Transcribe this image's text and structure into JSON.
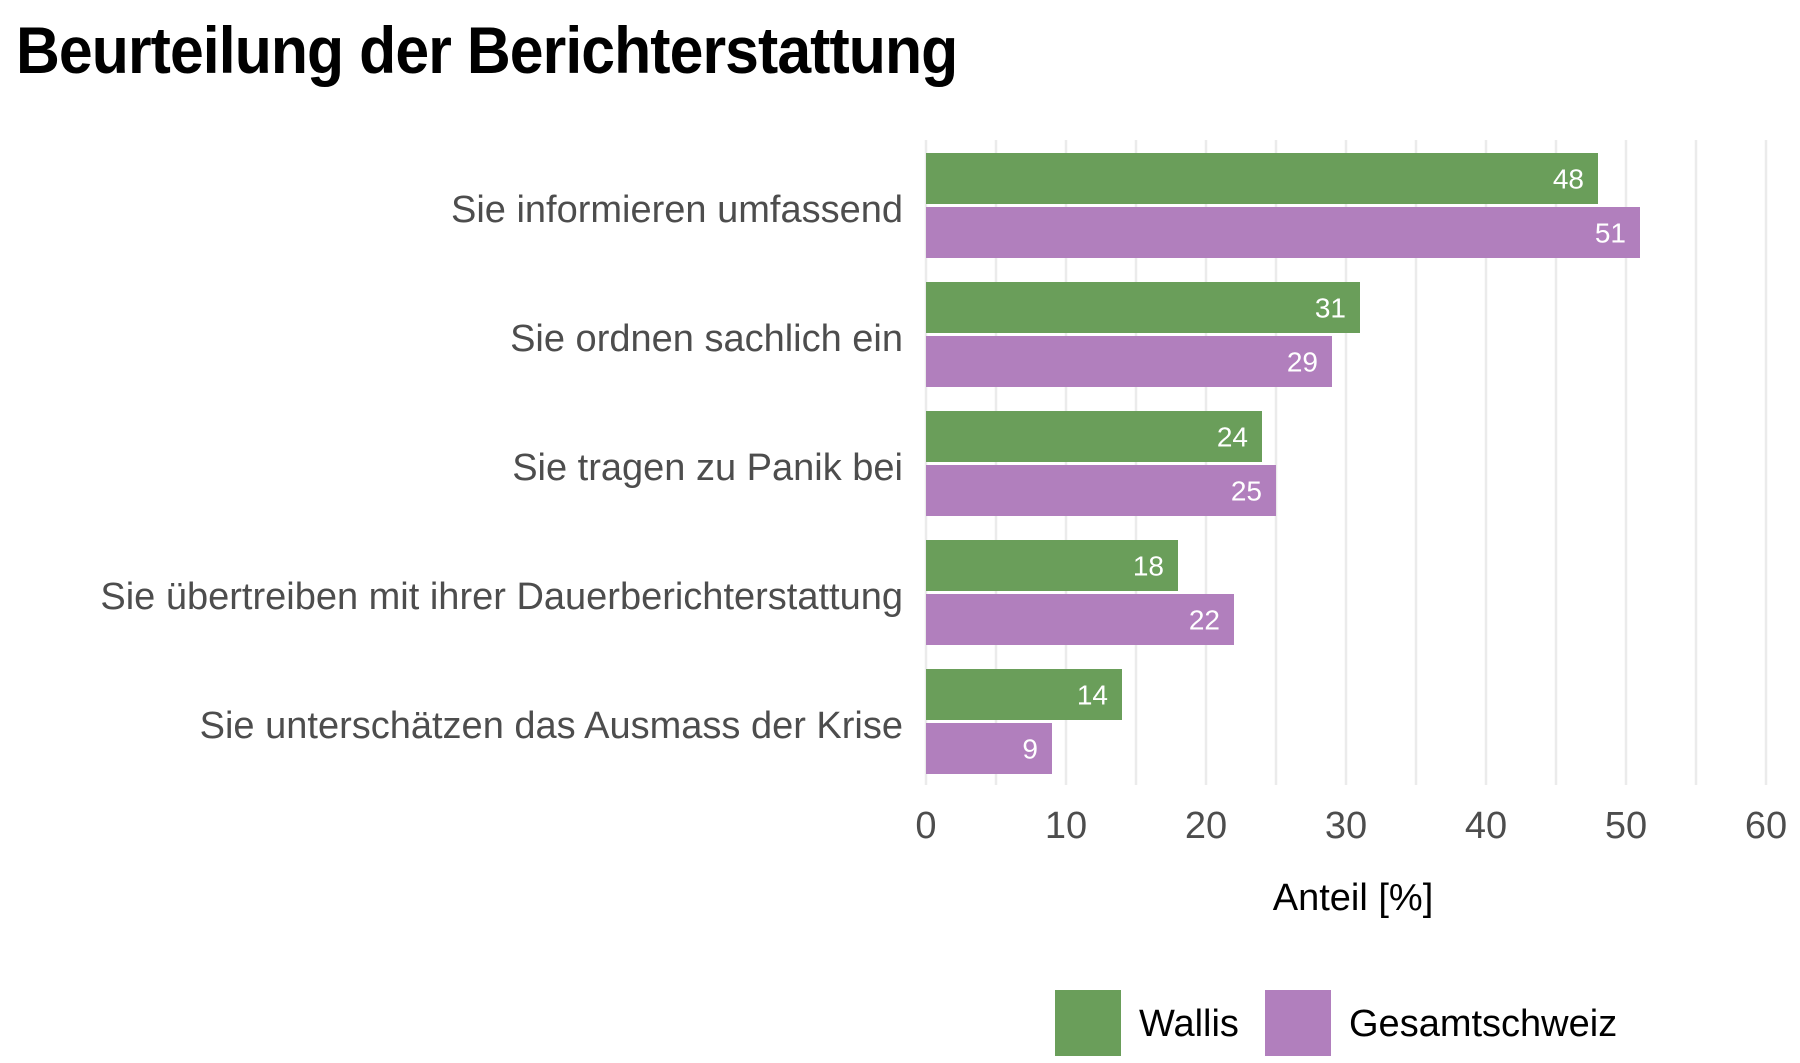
{
  "chart_data": {
    "type": "bar",
    "orientation": "horizontal",
    "title": "Beurteilung der Berichterstattung",
    "xlabel": "Anteil [%]",
    "ylabel": "",
    "xlim": [
      0,
      60
    ],
    "xticks": [
      0,
      10,
      20,
      30,
      40,
      50,
      60
    ],
    "xtick_labels": [
      "0",
      "10",
      "20",
      "30",
      "40",
      "50",
      "60"
    ],
    "minor_grid_step": 5,
    "grid": true,
    "categories": [
      "Sie informieren umfassend",
      "Sie ordnen sachlich ein",
      "Sie tragen zu Panik bei",
      "Sie übertreiben mit ihrer Dauerberichterstattung",
      "Sie unterschätzen das Ausmass der Krise"
    ],
    "series": [
      {
        "name": "Wallis",
        "color": "#6a9e5a",
        "values": [
          48,
          31,
          24,
          18,
          14
        ]
      },
      {
        "name": "Gesamtschweiz",
        "color": "#b17fbd",
        "values": [
          51,
          29,
          25,
          22,
          9
        ]
      }
    ],
    "data_labels": true,
    "legend": {
      "position": "bottom-right",
      "entries": [
        "Wallis",
        "Gesamtschweiz"
      ]
    }
  }
}
